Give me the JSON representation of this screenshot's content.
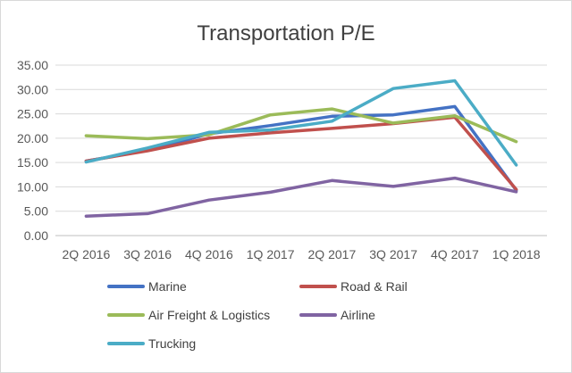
{
  "chart_data": {
    "type": "line",
    "title": "Transportation P/E",
    "xlabel": "",
    "ylabel": "",
    "categories": [
      "2Q 2016",
      "3Q 2016",
      "4Q 2016",
      "1Q 2017",
      "2Q 2017",
      "3Q 2017",
      "4Q 2017",
      "1Q 2018"
    ],
    "ylim": [
      0,
      35
    ],
    "yticks": [
      0,
      5,
      10,
      15,
      20,
      25,
      30,
      35
    ],
    "ytick_labels": [
      "0.00",
      "5.00",
      "10.00",
      "15.00",
      "20.00",
      "25.00",
      "30.00",
      "35.00"
    ],
    "grid": true,
    "legend_position": "bottom",
    "series": [
      {
        "name": "Marine",
        "color": "#4472c4",
        "values": [
          15.3,
          17.5,
          20.9,
          22.6,
          24.5,
          24.8,
          26.5,
          9.3
        ]
      },
      {
        "name": "Road & Rail",
        "color": "#c0504d",
        "values": [
          15.3,
          17.4,
          20.0,
          21.1,
          22.0,
          23.0,
          24.3,
          9.5
        ]
      },
      {
        "name": "Air Freight & Logistics",
        "color": "#9bbb59",
        "values": [
          20.5,
          19.9,
          20.7,
          24.8,
          26.0,
          23.1,
          24.6,
          19.3
        ]
      },
      {
        "name": "Airline",
        "color": "#8064a2",
        "values": [
          4.0,
          4.5,
          7.3,
          8.9,
          11.3,
          10.1,
          11.8,
          9.0
        ]
      },
      {
        "name": "Trucking",
        "color": "#4bacc6",
        "values": [
          15.1,
          18.0,
          21.2,
          21.7,
          23.5,
          30.2,
          31.8,
          14.5
        ]
      }
    ]
  }
}
